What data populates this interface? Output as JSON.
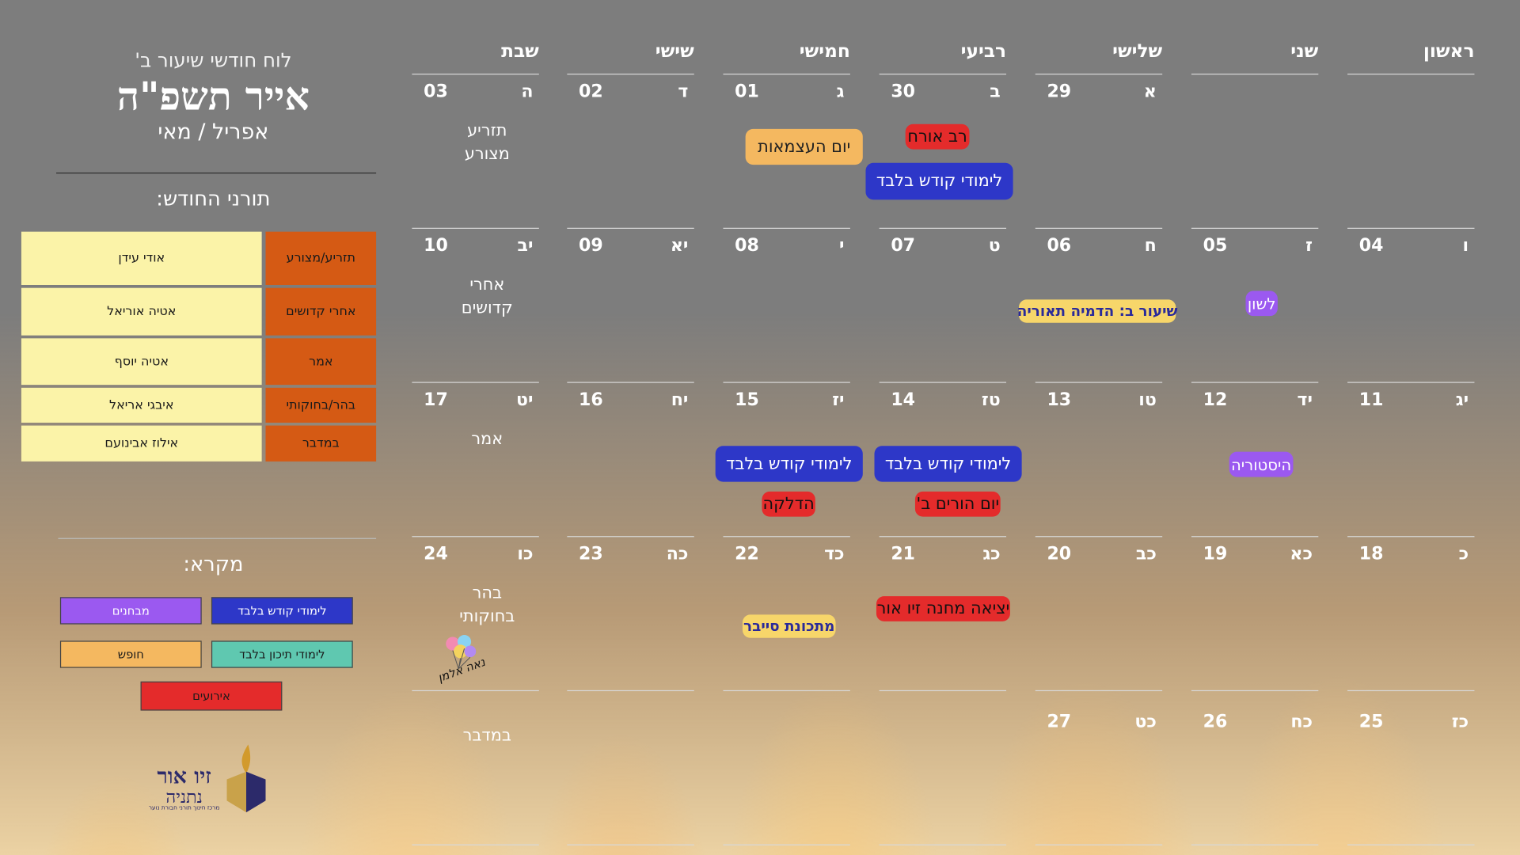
{
  "header": {
    "subtitle": "לוח חודשי שיעור ב'",
    "title": "אייר תשפ\"ה",
    "months": "אפריל / מאי"
  },
  "topics": {
    "title": "תורני החודש:",
    "rows": [
      {
        "topic": "תזריע/מצורע",
        "name": "אודי עידן"
      },
      {
        "topic": "אחרי קדושים",
        "name": "אטיה אוריאל"
      },
      {
        "topic": "אמר",
        "name": "אטיה יוסף"
      },
      {
        "topic": "בהר/בחוקותי",
        "name": "איבגי אריאל"
      },
      {
        "topic": "במדבר",
        "name": "אילוז אבינועם"
      }
    ]
  },
  "legend": {
    "title": "מקרא:",
    "items": [
      {
        "label": "לימודי קודש בלבד",
        "color": "#2d37c8"
      },
      {
        "label": "מבחנים",
        "color": "#9b59f0"
      },
      {
        "label": "לימודי תיכון בלבד",
        "color": "#5fc8b0"
      },
      {
        "label": "חופש",
        "color": "#f4b860"
      },
      {
        "label": "אירועים",
        "color": "#e42b2b"
      }
    ]
  },
  "calendar": {
    "days": [
      "ראשון",
      "שני",
      "שלישי",
      "רביעי",
      "חמישי",
      "שישי",
      "שבת"
    ],
    "weeks": [
      [
        {
          "num": "",
          "heb": ""
        },
        {
          "num": "",
          "heb": ""
        },
        {
          "num": "29",
          "heb": "א"
        },
        {
          "num": "30",
          "heb": "ב"
        },
        {
          "num": "01",
          "heb": "ג"
        },
        {
          "num": "02",
          "heb": "ד"
        },
        {
          "num": "03",
          "heb": "ה",
          "note": [
            "תזריע",
            "מצורע"
          ]
        }
      ],
      [
        {
          "num": "04",
          "heb": "ו"
        },
        {
          "num": "05",
          "heb": "ז"
        },
        {
          "num": "06",
          "heb": "ח"
        },
        {
          "num": "07",
          "heb": "ט"
        },
        {
          "num": "08",
          "heb": "י"
        },
        {
          "num": "09",
          "heb": "יא"
        },
        {
          "num": "10",
          "heb": "יב",
          "note": [
            "אחרי",
            "קדושים"
          ]
        }
      ],
      [
        {
          "num": "11",
          "heb": "יג"
        },
        {
          "num": "12",
          "heb": "יד"
        },
        {
          "num": "13",
          "heb": "טו"
        },
        {
          "num": "14",
          "heb": "טז"
        },
        {
          "num": "15",
          "heb": "יז"
        },
        {
          "num": "16",
          "heb": "יח"
        },
        {
          "num": "17",
          "heb": "יט",
          "note": [
            "אמר"
          ]
        }
      ],
      [
        {
          "num": "18",
          "heb": "כ"
        },
        {
          "num": "19",
          "heb": "כא"
        },
        {
          "num": "20",
          "heb": "כב"
        },
        {
          "num": "21",
          "heb": "כג"
        },
        {
          "num": "22",
          "heb": "כד"
        },
        {
          "num": "23",
          "heb": "כה"
        },
        {
          "num": "24",
          "heb": "כו",
          "note": [
            "בהר",
            "בחוקותי"
          ]
        }
      ],
      [
        {
          "num": "25",
          "heb": "כז"
        },
        {
          "num": "26",
          "heb": "כח"
        },
        {
          "num": "27",
          "heb": "כט"
        },
        {
          "num": "",
          "heb": ""
        },
        {
          "num": "",
          "heb": ""
        },
        {
          "num": "",
          "heb": ""
        },
        {
          "num": "",
          "heb": "",
          "note": [
            "במדבר"
          ]
        }
      ]
    ],
    "events": {
      "rav_orach": "רב אורח",
      "limudei_kodesh_1": "לימודי קודש בלבד",
      "yom_haatzmaut": "יום העצמאות",
      "shiur_b": "שיעור ב: הדמיה תאוריה",
      "lashon": "לשון",
      "limudei_kodesh_2": "לימודי קודש בלבד",
      "limudei_kodesh_3": "לימודי קודש בלבד",
      "yom_horim": "יום הורים ב'",
      "hadlaka": "הדלקה",
      "historia": "היסטוריה",
      "yetzia": "יציאה מחנה זיו אור",
      "cyber": "מתכונת סייבר"
    }
  },
  "birthday": {
    "name": "נאה אלמן"
  },
  "logo": {
    "line1": "זיו אור",
    "line2": "נתניה",
    "tagline": "מרכז חינוך תורני חבורת נוער"
  }
}
